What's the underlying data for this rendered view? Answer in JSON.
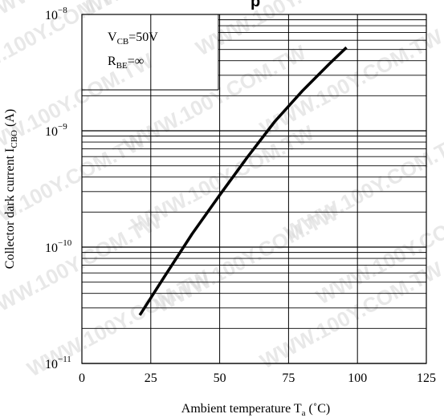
{
  "chart_data": {
    "type": "line",
    "title_fragment": "p",
    "xlabel": "Ambient temperature T",
    "xlabel_sub": "a",
    "xlabel_unit": " (˚C)",
    "ylabel": "Collector dark current I",
    "ylabel_sub": "CBO",
    "ylabel_unit": " (A)",
    "xlim": [
      0,
      125
    ],
    "ylim": [
      1e-11,
      1e-08
    ],
    "yscale": "log",
    "grid": true,
    "x_ticks": [
      "0",
      "25",
      "50",
      "75",
      "100",
      "125"
    ],
    "y_ticks": [
      {
        "base": "10",
        "exp": "−8"
      },
      {
        "base": "10",
        "exp": "−9"
      },
      {
        "base": "10",
        "exp": "−10"
      },
      {
        "base": "10",
        "exp": "−11"
      }
    ],
    "annotation": {
      "line1_main": "V",
      "line1_sub": "CB",
      "line1_rest": "=50V",
      "line2_main": "R",
      "line2_sub": "BE",
      "line2_rest": "=∞"
    },
    "series": [
      {
        "x": [
          21,
          30,
          40,
          50,
          60,
          70,
          80,
          90,
          96
        ],
        "y": [
          2.6e-11,
          5.6e-11,
          1.3e-10,
          2.8e-10,
          5.9e-10,
          1.2e-09,
          2.2e-09,
          3.8e-09,
          5.2e-09
        ]
      }
    ],
    "watermark_text": "WWW.100Y.COM.TW"
  }
}
